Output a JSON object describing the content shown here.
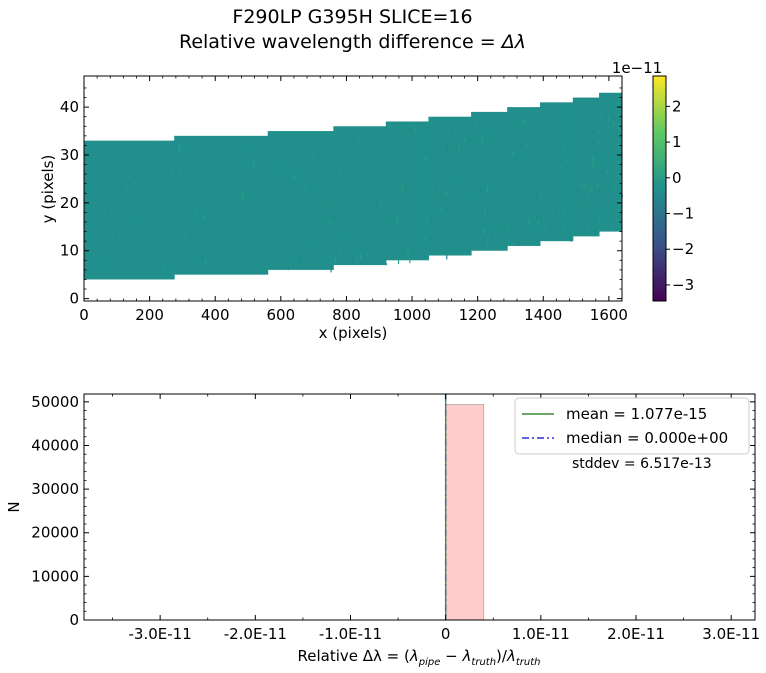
{
  "figure": {
    "title_line1": "F290LP   G395H   SLICE=16",
    "title_line2_prefix": "Relative wavelength difference = ",
    "title_line2_symbol": "Δλ"
  },
  "chart_data": [
    {
      "type": "heatmap",
      "xlabel": "x (pixels)",
      "ylabel": "y (pixels)",
      "xlim": [
        0,
        1640
      ],
      "ylim": [
        -0.5,
        46.5
      ],
      "x_ticks": [
        0,
        200,
        400,
        600,
        800,
        1000,
        1200,
        1400,
        1600
      ],
      "y_ticks": [
        0,
        10,
        20,
        30,
        40
      ],
      "fill_color": "#21908d",
      "region_steps": [
        {
          "x": [
            0,
            275
          ],
          "y": [
            4,
            33
          ]
        },
        {
          "x": [
            275,
            560
          ],
          "y": [
            5,
            34
          ]
        },
        {
          "x": [
            560,
            760
          ],
          "y": [
            6,
            35
          ]
        },
        {
          "x": [
            760,
            920
          ],
          "y": [
            7,
            36
          ]
        },
        {
          "x": [
            920,
            1050
          ],
          "y": [
            8,
            37
          ]
        },
        {
          "x": [
            1050,
            1180
          ],
          "y": [
            9,
            38
          ]
        },
        {
          "x": [
            1180,
            1290
          ],
          "y": [
            10,
            39
          ]
        },
        {
          "x": [
            1290,
            1390
          ],
          "y": [
            11,
            40
          ]
        },
        {
          "x": [
            1390,
            1490
          ],
          "y": [
            12,
            41
          ]
        },
        {
          "x": [
            1490,
            1570
          ],
          "y": [
            13,
            42
          ]
        },
        {
          "x": [
            1570,
            1640
          ],
          "y": [
            14,
            43
          ]
        }
      ],
      "colorbar": {
        "scale_label": "1e−11",
        "range": [
          -3.45,
          2.85
        ],
        "ticks": [
          2,
          1,
          0,
          -1,
          -2,
          -3
        ],
        "tick_labels": [
          "2",
          "1",
          "0",
          "−1",
          "−2",
          "−3"
        ],
        "colormap": [
          "#440154",
          "#3b528b",
          "#21908d",
          "#5dc963",
          "#fde725"
        ]
      }
    },
    {
      "type": "bar",
      "xlabel_prefix": "Relative Δλ = ",
      "xlabel_lambda": "λ",
      "xlabel_pipe": "pipe",
      "xlabel_minus": " − ",
      "xlabel_truth": "truth",
      "xlabel_slash": "/",
      "ylabel": "N",
      "xlim": [
        -3.8e-11,
        3.25e-11
      ],
      "ylim": [
        0,
        51800
      ],
      "x_ticks": [
        -3e-11,
        -2e-11,
        -1e-11,
        0,
        1e-11,
        2e-11,
        3e-11
      ],
      "x_tick_labels": [
        "-3.0E-11",
        "-2.0E-11",
        "-1.0E-11",
        "0",
        "1.0E-11",
        "2.0E-11",
        "3.0E-11"
      ],
      "y_ticks": [
        0,
        10000,
        20000,
        30000,
        40000,
        50000
      ],
      "y_tick_labels": [
        "0",
        "10000",
        "20000",
        "30000",
        "40000",
        "50000"
      ],
      "bins": [
        {
          "x0": 0,
          "x1": 4e-12,
          "count": 49400
        }
      ],
      "bar_color": "#ffcccc",
      "mean": 1.077e-15,
      "median": 0.0,
      "lines_color": {
        "mean": "#3a8a3a",
        "median": "#2b2bd6"
      },
      "legend": {
        "placement": "top-right",
        "entries": [
          {
            "label": "mean = 1.077e-15",
            "style": "solid",
            "color": "#3a8a3a"
          },
          {
            "label": "median = 0.000e+00",
            "style": "dashdot",
            "color": "#2b2bd6"
          }
        ]
      },
      "annotation": "stddev = 6.517e-13"
    }
  ]
}
